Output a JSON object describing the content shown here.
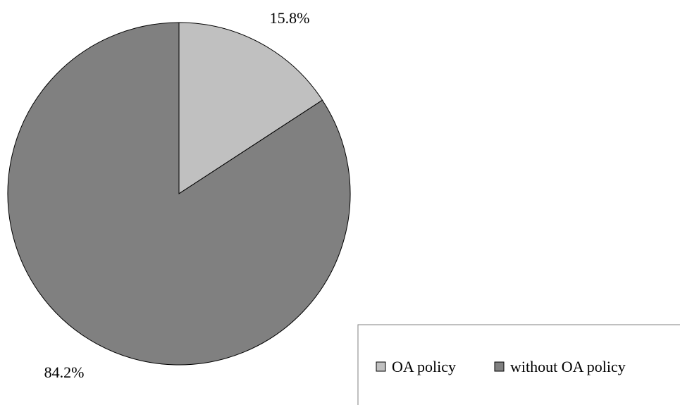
{
  "chart_data": {
    "type": "pie",
    "slices": [
      {
        "label": "OA policy",
        "value": 15.8,
        "value_label": "15.8%",
        "color": "#c0c0c0"
      },
      {
        "label": "without OA policy",
        "value": 84.2,
        "value_label": "84.2%",
        "color": "#808080"
      }
    ],
    "legend": {
      "placement": "bottom-right",
      "entries": [
        "OA policy",
        "without OA policy"
      ]
    },
    "start_angle": "12 o'clock",
    "direction": "clockwise"
  }
}
